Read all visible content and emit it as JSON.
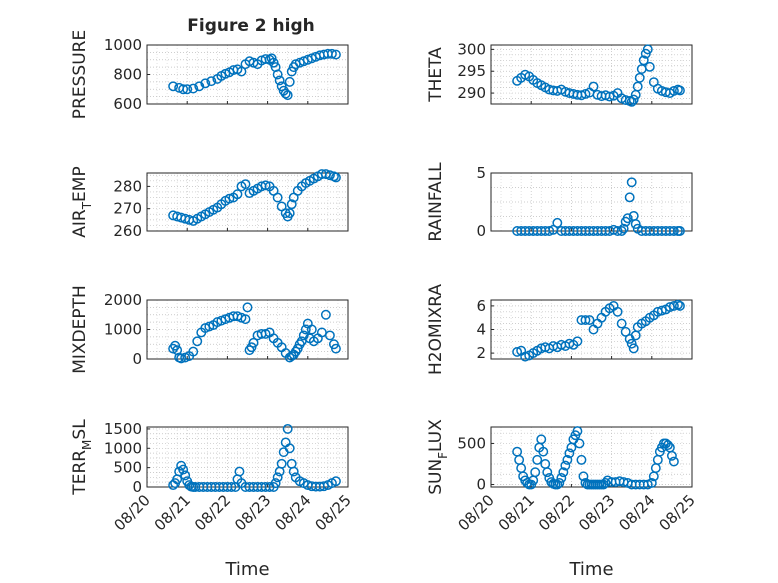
{
  "figure": {
    "title": "Figure 2 high",
    "x_tick_labels": [
      "08/20",
      "08/21",
      "08/22",
      "08/23",
      "08/24",
      "08/25"
    ],
    "x_label": "Time",
    "marker_color": "#0072bd"
  },
  "chart_data": [
    {
      "type": "scatter",
      "ylabel": "PRESSURE",
      "ylim": [
        600,
        1000
      ],
      "yticks": [
        600,
        800,
        1000
      ],
      "xlim": [
        0,
        5
      ],
      "grid": true,
      "x": [
        0.65,
        0.8,
        0.9,
        1.0,
        1.15,
        1.3,
        1.45,
        1.6,
        1.75,
        1.85,
        1.95,
        2.05,
        2.15,
        2.25,
        2.35,
        2.45,
        2.55,
        2.65,
        2.75,
        2.85,
        2.95,
        3.05,
        3.1,
        3.15,
        3.2,
        3.25,
        3.3,
        3.35,
        3.4,
        3.45,
        3.5,
        3.55,
        3.6,
        3.65,
        3.7,
        3.8,
        3.9,
        4.0,
        4.1,
        4.2,
        4.3,
        4.4,
        4.5,
        4.6,
        4.7
      ],
      "y": [
        720,
        710,
        700,
        700,
        705,
        720,
        740,
        755,
        770,
        790,
        805,
        815,
        830,
        835,
        820,
        870,
        890,
        880,
        870,
        895,
        905,
        900,
        910,
        880,
        850,
        800,
        760,
        720,
        690,
        670,
        660,
        750,
        820,
        850,
        870,
        880,
        890,
        900,
        910,
        920,
        930,
        935,
        940,
        940,
        935
      ]
    },
    {
      "type": "scatter",
      "ylabel": "THETA",
      "ylim": [
        287.5,
        301
      ],
      "yticks": [
        290,
        295,
        300
      ],
      "xlim": [
        0,
        5
      ],
      "grid": true,
      "x": [
        0.65,
        0.75,
        0.85,
        0.95,
        1.05,
        1.15,
        1.25,
        1.35,
        1.45,
        1.55,
        1.65,
        1.75,
        1.85,
        1.95,
        2.05,
        2.15,
        2.25,
        2.35,
        2.45,
        2.55,
        2.65,
        2.75,
        2.85,
        2.95,
        3.05,
        3.15,
        3.25,
        3.35,
        3.45,
        3.5,
        3.55,
        3.6,
        3.65,
        3.7,
        3.75,
        3.8,
        3.85,
        3.9,
        3.95,
        4.05,
        4.15,
        4.25,
        4.35,
        4.45,
        4.55,
        4.65,
        4.7
      ],
      "y": [
        292.8,
        293.5,
        294.2,
        293.8,
        293.0,
        292.3,
        291.8,
        291.3,
        290.8,
        290.6,
        290.5,
        290.8,
        290.3,
        290.0,
        289.8,
        289.6,
        289.5,
        289.8,
        290.1,
        291.5,
        289.6,
        289.3,
        289.5,
        289.2,
        289.4,
        290.0,
        288.8,
        288.4,
        288.2,
        288.0,
        288.5,
        289.6,
        291.5,
        293.5,
        295.5,
        297.5,
        299.0,
        300.0,
        296.0,
        292.5,
        291.0,
        290.5,
        290.2,
        290.0,
        290.5,
        290.8,
        290.6
      ]
    },
    {
      "type": "scatter",
      "ylabel": "AIR_TEMP",
      "ylim": [
        260,
        286
      ],
      "yticks": [
        260,
        270,
        280
      ],
      "xlim": [
        0,
        5
      ],
      "grid": true,
      "x": [
        0.65,
        0.75,
        0.85,
        0.95,
        1.05,
        1.15,
        1.25,
        1.35,
        1.45,
        1.55,
        1.65,
        1.75,
        1.85,
        1.95,
        2.05,
        2.15,
        2.25,
        2.35,
        2.45,
        2.55,
        2.65,
        2.75,
        2.85,
        2.95,
        3.05,
        3.15,
        3.25,
        3.35,
        3.45,
        3.5,
        3.55,
        3.6,
        3.65,
        3.75,
        3.85,
        3.95,
        4.05,
        4.15,
        4.25,
        4.35,
        4.45,
        4.55,
        4.65,
        4.7
      ],
      "y": [
        267,
        266.5,
        266,
        265.5,
        265,
        264.5,
        265.5,
        266.5,
        267.5,
        268.5,
        269.5,
        270.5,
        272,
        273.5,
        274.5,
        275,
        276.5,
        280,
        281,
        277,
        278,
        279,
        280,
        280.5,
        280,
        278,
        275,
        271,
        268,
        266.5,
        268,
        272,
        275,
        278,
        280,
        281.5,
        282.5,
        283.5,
        284.5,
        285.5,
        285.5,
        285,
        284.5,
        284
      ]
    },
    {
      "type": "scatter",
      "ylabel": "RAINFALL",
      "ylim": [
        0,
        5
      ],
      "yticks": [
        0,
        5
      ],
      "xlim": [
        0,
        5
      ],
      "grid": true,
      "x": [
        0.65,
        0.75,
        0.85,
        0.95,
        1.05,
        1.15,
        1.25,
        1.35,
        1.45,
        1.55,
        1.65,
        1.75,
        1.85,
        1.95,
        2.05,
        2.15,
        2.25,
        2.35,
        2.45,
        2.55,
        2.65,
        2.75,
        2.85,
        2.95,
        3.05,
        3.15,
        3.25,
        3.3,
        3.35,
        3.4,
        3.45,
        3.5,
        3.55,
        3.6,
        3.65,
        3.75,
        3.85,
        3.95,
        4.05,
        4.15,
        4.25,
        4.35,
        4.45,
        4.55,
        4.65,
        4.7
      ],
      "y": [
        0,
        0,
        0,
        0,
        0,
        0,
        0,
        0,
        0,
        0.1,
        0.7,
        0,
        0,
        0,
        0,
        0,
        0,
        0,
        0,
        0,
        0,
        0,
        0,
        0,
        0.1,
        0,
        0,
        0.2,
        0.8,
        1.1,
        2.9,
        4.2,
        1.3,
        0.6,
        0.2,
        0,
        0,
        0,
        0,
        0,
        0,
        0,
        0,
        0,
        0,
        0
      ]
    },
    {
      "type": "scatter",
      "ylabel": "MIXDEPTH",
      "ylim": [
        0,
        2000
      ],
      "yticks": [
        0,
        1000,
        2000
      ],
      "xlim": [
        0,
        5
      ],
      "grid": true,
      "x": [
        0.65,
        0.7,
        0.75,
        0.8,
        0.85,
        0.95,
        1.05,
        1.15,
        1.25,
        1.35,
        1.45,
        1.55,
        1.65,
        1.75,
        1.85,
        1.95,
        2.05,
        2.15,
        2.25,
        2.35,
        2.45,
        2.5,
        2.55,
        2.6,
        2.65,
        2.75,
        2.85,
        2.95,
        3.05,
        3.15,
        3.25,
        3.35,
        3.45,
        3.55,
        3.6,
        3.65,
        3.7,
        3.75,
        3.8,
        3.85,
        3.9,
        3.95,
        4.0,
        4.05,
        4.1,
        4.15,
        4.25,
        4.35,
        4.45,
        4.55,
        4.65,
        4.7
      ],
      "y": [
        350,
        450,
        300,
        50,
        20,
        50,
        100,
        250,
        600,
        900,
        1050,
        1100,
        1150,
        1250,
        1300,
        1350,
        1400,
        1450,
        1450,
        1400,
        1350,
        1750,
        300,
        400,
        550,
        800,
        850,
        850,
        900,
        700,
        550,
        400,
        200,
        50,
        100,
        150,
        250,
        350,
        500,
        600,
        800,
        1000,
        1200,
        700,
        1000,
        600,
        700,
        900,
        1500,
        800,
        500,
        350
      ]
    },
    {
      "type": "scatter",
      "ylabel": "H2OMIXRA",
      "ylim": [
        1.5,
        6.5
      ],
      "yticks": [
        2,
        4,
        6
      ],
      "xlim": [
        0,
        5
      ],
      "grid": true,
      "x": [
        0.65,
        0.75,
        0.85,
        0.95,
        1.05,
        1.15,
        1.25,
        1.35,
        1.45,
        1.55,
        1.65,
        1.75,
        1.85,
        1.95,
        2.05,
        2.15,
        2.25,
        2.35,
        2.45,
        2.55,
        2.65,
        2.75,
        2.85,
        2.95,
        3.05,
        3.15,
        3.25,
        3.35,
        3.45,
        3.5,
        3.55,
        3.6,
        3.65,
        3.75,
        3.85,
        3.95,
        4.05,
        4.15,
        4.25,
        4.35,
        4.45,
        4.55,
        4.65,
        4.7
      ],
      "y": [
        2.1,
        2.2,
        1.7,
        1.8,
        2.0,
        2.2,
        2.4,
        2.5,
        2.4,
        2.6,
        2.5,
        2.7,
        2.6,
        2.8,
        2.7,
        3.0,
        4.8,
        4.8,
        4.8,
        4.0,
        4.5,
        5.0,
        5.5,
        5.8,
        6.0,
        5.5,
        4.5,
        3.8,
        3.2,
        2.8,
        2.4,
        3.5,
        4.2,
        4.5,
        4.7,
        5.0,
        5.2,
        5.5,
        5.6,
        5.7,
        5.9,
        6.0,
        6.1,
        6.0
      ]
    },
    {
      "type": "scatter",
      "ylabel": "TERR_MSL",
      "ylim": [
        0,
        1550
      ],
      "yticks": [
        0,
        500,
        1000,
        1500
      ],
      "xlim": [
        0,
        5
      ],
      "grid": true,
      "x": [
        0.65,
        0.7,
        0.75,
        0.8,
        0.85,
        0.9,
        0.95,
        1.0,
        1.05,
        1.1,
        1.15,
        1.2,
        1.3,
        1.4,
        1.5,
        1.6,
        1.7,
        1.8,
        1.9,
        2.0,
        2.1,
        2.2,
        2.25,
        2.3,
        2.35,
        2.45,
        2.55,
        2.65,
        2.75,
        2.85,
        2.95,
        3.05,
        3.15,
        3.2,
        3.25,
        3.3,
        3.35,
        3.4,
        3.45,
        3.5,
        3.55,
        3.6,
        3.65,
        3.7,
        3.8,
        3.9,
        4.0,
        4.1,
        4.2,
        4.3,
        4.4,
        4.5,
        4.6,
        4.7
      ],
      "y": [
        50,
        100,
        200,
        400,
        550,
        450,
        300,
        150,
        50,
        10,
        0,
        0,
        0,
        0,
        0,
        0,
        0,
        0,
        0,
        0,
        0,
        0,
        200,
        400,
        100,
        0,
        0,
        0,
        0,
        0,
        0,
        0,
        0,
        100,
        250,
        400,
        600,
        900,
        1150,
        1500,
        1000,
        600,
        400,
        250,
        150,
        100,
        50,
        20,
        10,
        10,
        20,
        50,
        100,
        150
      ]
    },
    {
      "type": "scatter",
      "ylabel": "SUN_FLUX",
      "ylim": [
        -30,
        700
      ],
      "yticks": [
        0,
        500
      ],
      "xlim": [
        0,
        5
      ],
      "grid": true,
      "x": [
        0.65,
        0.7,
        0.75,
        0.8,
        0.85,
        0.9,
        0.95,
        1.0,
        1.05,
        1.1,
        1.15,
        1.2,
        1.25,
        1.3,
        1.35,
        1.4,
        1.45,
        1.5,
        1.55,
        1.6,
        1.65,
        1.7,
        1.75,
        1.8,
        1.85,
        1.9,
        1.95,
        2.0,
        2.05,
        2.1,
        2.15,
        2.2,
        2.25,
        2.3,
        2.35,
        2.4,
        2.45,
        2.5,
        2.55,
        2.6,
        2.65,
        2.7,
        2.75,
        2.8,
        2.85,
        2.9,
        3.0,
        3.1,
        3.2,
        3.3,
        3.4,
        3.5,
        3.6,
        3.7,
        3.8,
        3.9,
        4.0,
        4.05,
        4.1,
        4.15,
        4.2,
        4.25,
        4.3,
        4.35,
        4.4,
        4.45,
        4.5,
        4.55
      ],
      "y": [
        400,
        300,
        200,
        100,
        50,
        20,
        0,
        0,
        50,
        150,
        300,
        450,
        550,
        400,
        250,
        150,
        80,
        30,
        10,
        0,
        0,
        20,
        80,
        150,
        230,
        300,
        380,
        450,
        550,
        600,
        650,
        500,
        300,
        100,
        20,
        0,
        0,
        0,
        0,
        0,
        0,
        0,
        0,
        0,
        20,
        50,
        30,
        30,
        40,
        30,
        20,
        0,
        0,
        0,
        0,
        0,
        20,
        100,
        200,
        300,
        400,
        450,
        500,
        500,
        480,
        450,
        350,
        280
      ]
    }
  ]
}
